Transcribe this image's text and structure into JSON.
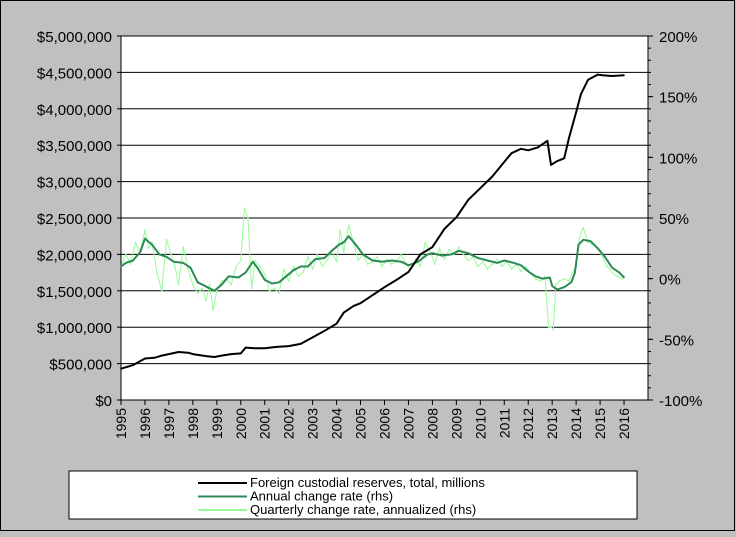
{
  "chart_data": {
    "type": "line",
    "title": "",
    "left_axis": {
      "label": "",
      "range": [
        0,
        5000000
      ],
      "ticks": [
        0,
        500000,
        1000000,
        1500000,
        2000000,
        2500000,
        3000000,
        3500000,
        4000000,
        4500000,
        5000000
      ],
      "tick_labels": [
        "$0",
        "$500,000",
        "$1,000,000",
        "$1,500,000",
        "$2,000,000",
        "$2,500,000",
        "$3,000,000",
        "$3,500,000",
        "$4,000,000",
        "$4,500,000",
        "$5,000,000"
      ]
    },
    "right_axis": {
      "label": "",
      "range": [
        -100,
        200
      ],
      "ticks": [
        -100,
        -50,
        0,
        50,
        100,
        150,
        200
      ],
      "tick_labels": [
        "-100%",
        "-50%",
        "0%",
        "50%",
        "100%",
        "150%",
        "200%"
      ]
    },
    "x_axis": {
      "range": [
        1995,
        2017
      ],
      "tick_labels": [
        "1995",
        "1996",
        "1997",
        "1998",
        "1999",
        "2000",
        "2001",
        "2002",
        "2003",
        "2004",
        "2005",
        "2006",
        "2007",
        "2008",
        "2009",
        "2010",
        "2011",
        "2012",
        "2013",
        "2014",
        "2015",
        "2016"
      ]
    },
    "grid": true,
    "legend_position": "bottom",
    "series": [
      {
        "name": "Foreign custodial reserves, total, millions",
        "axis": "left",
        "color": "#000000",
        "x": [
          1995.0,
          1995.5,
          1996.0,
          1996.4,
          1996.7,
          1997.0,
          1997.4,
          1997.8,
          1998.0,
          1998.3,
          1998.6,
          1998.9,
          1999.2,
          1999.6,
          2000.0,
          2000.2,
          2000.6,
          2001.0,
          2001.5,
          2002.0,
          2002.5,
          2003.0,
          2003.5,
          2004.0,
          2004.3,
          2004.7,
          2005.0,
          2005.5,
          2006.0,
          2006.5,
          2007.0,
          2007.5,
          2008.0,
          2008.5,
          2009.0,
          2009.5,
          2010.0,
          2010.5,
          2011.0,
          2011.3,
          2011.7,
          2012.0,
          2012.4,
          2012.8,
          2012.95,
          2013.2,
          2013.5,
          2013.7,
          2014.0,
          2014.2,
          2014.5,
          2014.9,
          2015.1,
          2015.5,
          2016.0
        ],
        "values": [
          430000,
          480000,
          570000,
          580000,
          610000,
          630000,
          660000,
          650000,
          630000,
          615000,
          600000,
          590000,
          610000,
          630000,
          640000,
          720000,
          710000,
          710000,
          730000,
          740000,
          770000,
          860000,
          950000,
          1050000,
          1200000,
          1290000,
          1330000,
          1440000,
          1550000,
          1650000,
          1760000,
          2000000,
          2100000,
          2350000,
          2510000,
          2750000,
          2910000,
          3070000,
          3270000,
          3390000,
          3450000,
          3430000,
          3470000,
          3560000,
          3230000,
          3280000,
          3320000,
          3600000,
          3950000,
          4200000,
          4400000,
          4470000,
          4460000,
          4450000,
          4460000
        ]
      },
      {
        "name": "Annual change rate (rhs)",
        "axis": "right",
        "color": "#2e8b57",
        "x": [
          1995.0,
          1995.2,
          1995.5,
          1995.8,
          1996.0,
          1996.3,
          1996.6,
          1996.9,
          1997.2,
          1997.6,
          1997.9,
          1998.2,
          1998.5,
          1998.9,
          1999.2,
          1999.5,
          1999.9,
          2000.2,
          2000.5,
          2000.7,
          2001.0,
          2001.3,
          2001.6,
          2001.9,
          2002.2,
          2002.5,
          2002.8,
          2003.1,
          2003.5,
          2003.8,
          2004.1,
          2004.3,
          2004.5,
          2004.8,
          2005.1,
          2005.5,
          2005.9,
          2006.3,
          2006.7,
          2007.0,
          2007.4,
          2007.8,
          2008.0,
          2008.4,
          2008.8,
          2009.1,
          2009.5,
          2009.9,
          2010.3,
          2010.7,
          2011.0,
          2011.4,
          2011.7,
          2012.0,
          2012.3,
          2012.6,
          2012.9,
          2013.0,
          2013.2,
          2013.5,
          2013.8,
          2013.95,
          2014.1,
          2014.3,
          2014.6,
          2014.9,
          2015.2,
          2015.5,
          2015.8,
          2016.0
        ],
        "values": [
          10,
          13,
          15,
          22,
          33,
          28,
          20,
          18,
          14,
          13,
          9,
          -3,
          -6,
          -10,
          -5,
          2,
          1,
          5,
          14,
          9,
          -1,
          -4,
          -3,
          2,
          7,
          10,
          10,
          16,
          17,
          23,
          28,
          30,
          35,
          28,
          20,
          15,
          14,
          15,
          14,
          11,
          14,
          20,
          21,
          19,
          20,
          23,
          21,
          17,
          15,
          13,
          15,
          13,
          11,
          6,
          2,
          0,
          1,
          -6,
          -9,
          -7,
          -3,
          5,
          28,
          32,
          31,
          25,
          18,
          9,
          5,
          1
        ]
      },
      {
        "name": "Quarterly change rate, annualized (rhs)",
        "axis": "right",
        "color": "#98fb98",
        "x": [
          1995.0,
          1995.2,
          1995.4,
          1995.6,
          1995.8,
          1996.0,
          1996.15,
          1996.3,
          1996.5,
          1996.7,
          1996.9,
          1997.1,
          1997.25,
          1997.4,
          1997.6,
          1997.8,
          1998.0,
          1998.2,
          1998.4,
          1998.55,
          1998.7,
          1998.85,
          1999.0,
          1999.2,
          1999.4,
          1999.6,
          1999.8,
          2000.0,
          2000.15,
          2000.3,
          2000.45,
          2000.6,
          2000.8,
          2001.0,
          2001.2,
          2001.4,
          2001.6,
          2001.8,
          2002.0,
          2002.2,
          2002.4,
          2002.6,
          2002.8,
          2003.0,
          2003.2,
          2003.4,
          2003.6,
          2003.8,
          2004.0,
          2004.15,
          2004.3,
          2004.5,
          2004.7,
          2004.9,
          2005.1,
          2005.3,
          2005.5,
          2005.7,
          2005.9,
          2006.1,
          2006.3,
          2006.5,
          2006.7,
          2006.9,
          2007.1,
          2007.3,
          2007.5,
          2007.7,
          2007.9,
          2008.1,
          2008.3,
          2008.5,
          2008.7,
          2008.9,
          2009.1,
          2009.3,
          2009.5,
          2009.7,
          2009.9,
          2010.1,
          2010.3,
          2010.5,
          2010.7,
          2010.9,
          2011.1,
          2011.3,
          2011.5,
          2011.7,
          2011.9,
          2012.1,
          2012.3,
          2012.5,
          2012.7,
          2012.85,
          2012.95,
          2013.05,
          2013.15,
          2013.3,
          2013.5,
          2013.7,
          2013.85,
          2014.0,
          2014.15,
          2014.3,
          2014.5,
          2014.7,
          2014.9,
          2015.1,
          2015.3,
          2015.5,
          2015.7,
          2015.9,
          2016.0
        ],
        "values": [
          10,
          20,
          12,
          30,
          22,
          40,
          25,
          30,
          5,
          -10,
          32,
          20,
          10,
          -5,
          26,
          8,
          -5,
          -12,
          -8,
          -18,
          -5,
          -26,
          -10,
          -2,
          0,
          -5,
          10,
          15,
          58,
          50,
          -8,
          15,
          10,
          4,
          -10,
          -8,
          -12,
          8,
          -2,
          10,
          2,
          5,
          18,
          8,
          20,
          10,
          15,
          22,
          14,
          40,
          22,
          44,
          30,
          15,
          20,
          12,
          14,
          18,
          10,
          16,
          12,
          14,
          20,
          12,
          8,
          16,
          10,
          30,
          22,
          12,
          25,
          16,
          24,
          20,
          26,
          20,
          15,
          18,
          10,
          14,
          8,
          12,
          16,
          10,
          14,
          8,
          12,
          6,
          10,
          4,
          0,
          -2,
          2,
          -40,
          -40,
          -42,
          -5,
          -2,
          0,
          -2,
          5,
          10,
          35,
          42,
          30,
          28,
          25,
          18,
          10,
          5,
          2,
          0,
          2
        ]
      }
    ]
  }
}
